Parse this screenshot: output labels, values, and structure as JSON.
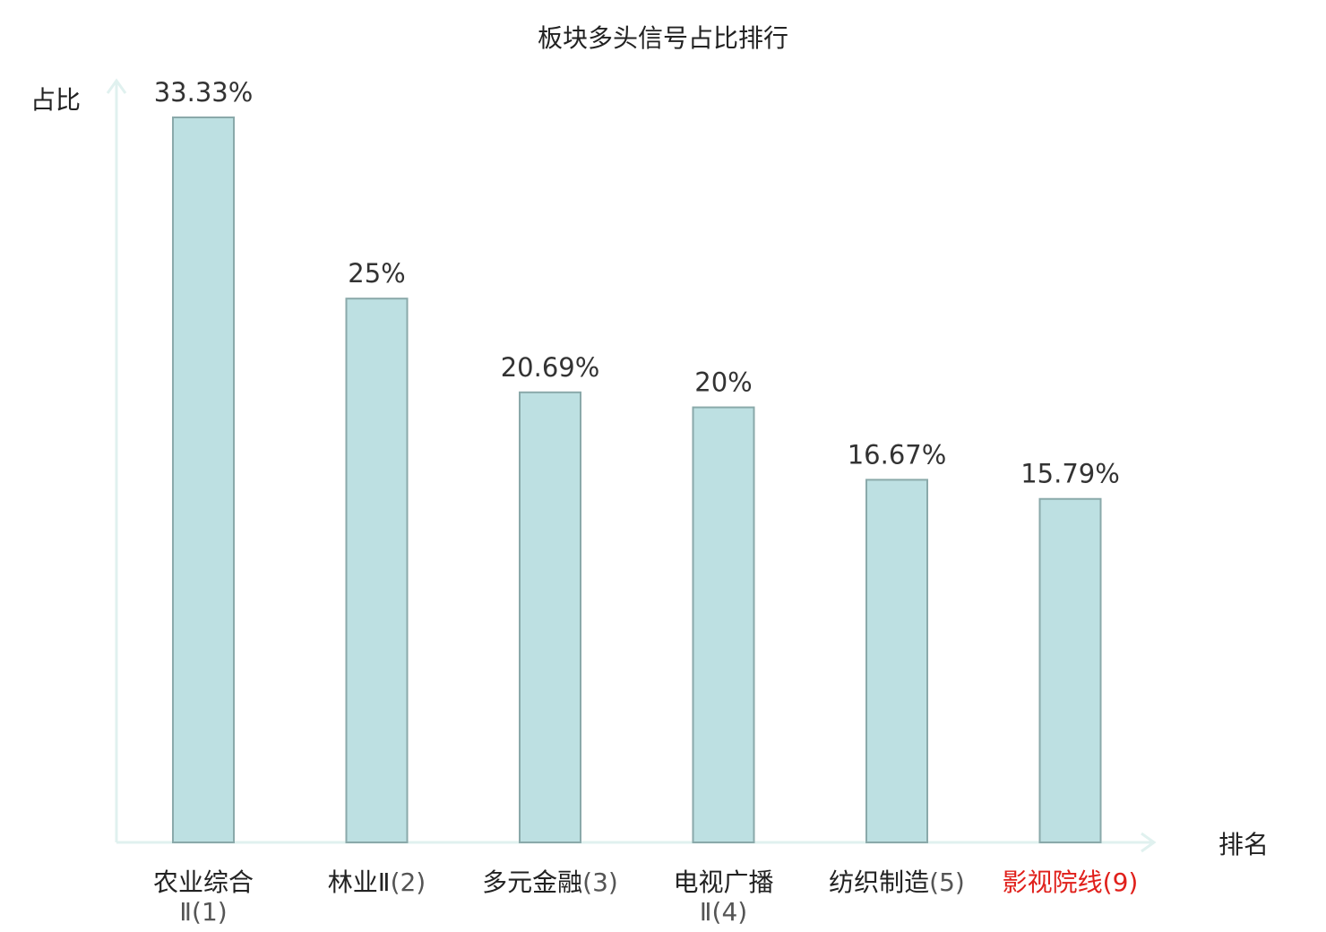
{
  "chart_data": {
    "type": "bar",
    "title": "板块多头信号占比排行",
    "xlabel": "排名",
    "ylabel": "占比",
    "categories": [
      {
        "name": "农业综合Ⅱ",
        "rank": "(1)",
        "highlight": false
      },
      {
        "name": "林业Ⅱ",
        "rank": "(2)",
        "highlight": false
      },
      {
        "name": "多元金融",
        "rank": "(3)",
        "highlight": false
      },
      {
        "name": "电视广播Ⅱ",
        "rank": "(4)",
        "highlight": false
      },
      {
        "name": "纺织制造",
        "rank": "(5)",
        "highlight": false
      },
      {
        "name": "影视院线",
        "rank": "(9)",
        "highlight": true
      }
    ],
    "values": [
      33.33,
      25,
      20.69,
      20,
      16.67,
      15.79
    ],
    "value_labels": [
      "33.33%",
      "25%",
      "20.69%",
      "20%",
      "16.67%",
      "15.79%"
    ],
    "ylim": [
      0,
      33.33
    ],
    "grid": false,
    "legend": "none",
    "colors": {
      "bar_fill": "#bde0e2",
      "bar_stroke": "#8aa9aa",
      "axis": "#e0f1ef",
      "highlight": "#e0201b",
      "text": "#222222"
    }
  }
}
